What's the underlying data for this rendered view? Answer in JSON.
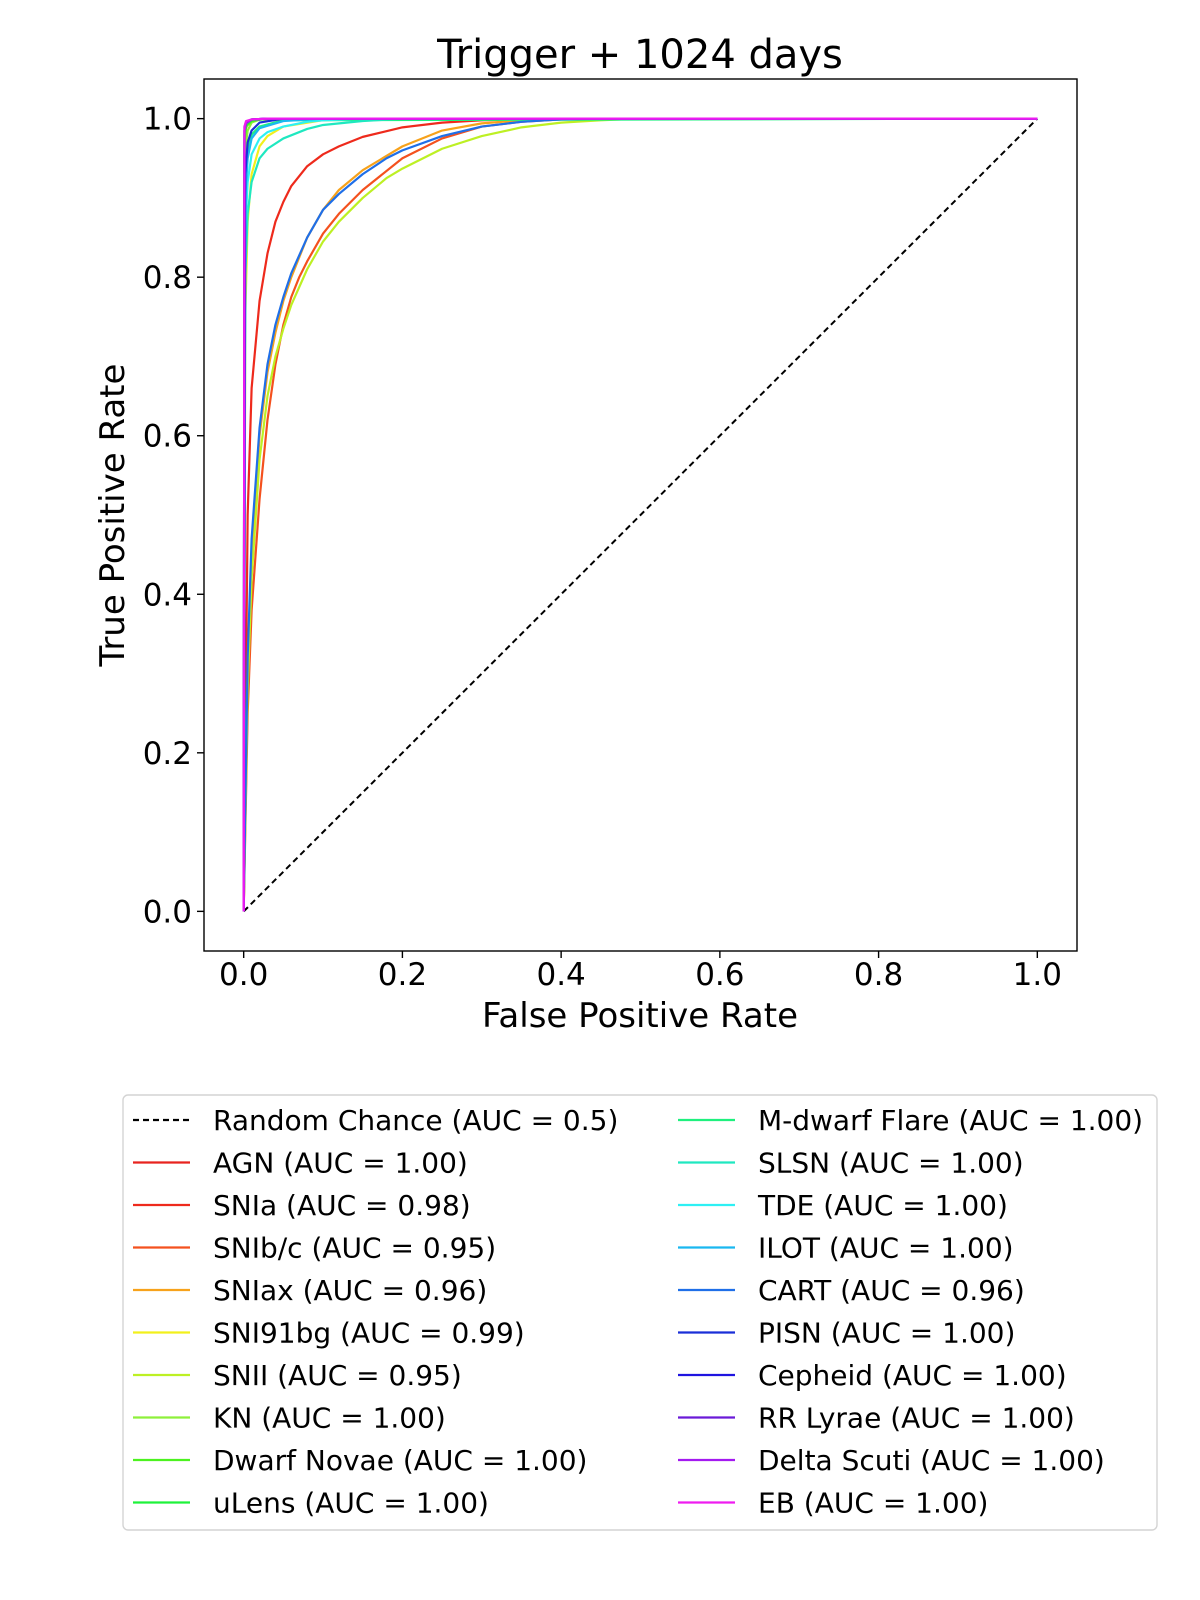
{
  "chart_data": {
    "type": "line",
    "title": "Trigger + 1024 days",
    "xlabel": "False Positive Rate",
    "ylabel": "True Positive Rate",
    "xlim": [
      -0.05,
      1.05
    ],
    "ylim": [
      -0.05,
      1.05
    ],
    "xticks": [
      "0.0",
      "0.2",
      "0.4",
      "0.6",
      "0.8",
      "1.0"
    ],
    "yticks": [
      "0.0",
      "0.2",
      "0.4",
      "0.6",
      "0.8",
      "1.0"
    ],
    "grid": false,
    "legend_placement": "below plot, two columns",
    "baseline": {
      "name": "Random Chance (AUC = 0.5)",
      "color": "#000000",
      "style": "dashed",
      "x": [
        0,
        1
      ],
      "y": [
        0,
        1
      ]
    },
    "series": [
      {
        "name": "AGN (AUC = 1.00)",
        "color": "#e8231f",
        "x": [
          0,
          0.002,
          0.005,
          0.01,
          0.02,
          0.05,
          0.1,
          1
        ],
        "y": [
          0,
          0.985,
          0.995,
          0.998,
          0.999,
          1,
          1,
          1
        ]
      },
      {
        "name": "SNIa (AUC = 0.98)",
        "color": "#ee2a1c",
        "x": [
          0,
          0.005,
          0.01,
          0.02,
          0.03,
          0.04,
          0.05,
          0.06,
          0.08,
          0.1,
          0.12,
          0.15,
          0.2,
          0.25,
          0.3,
          0.4,
          1
        ],
        "y": [
          0,
          0.5,
          0.66,
          0.77,
          0.83,
          0.87,
          0.895,
          0.915,
          0.94,
          0.955,
          0.965,
          0.977,
          0.989,
          0.995,
          0.998,
          1,
          1
        ]
      },
      {
        "name": "SNIb/c (AUC = 0.95)",
        "color": "#f4511e",
        "x": [
          0,
          0.005,
          0.01,
          0.02,
          0.03,
          0.04,
          0.05,
          0.06,
          0.07,
          0.08,
          0.1,
          0.12,
          0.15,
          0.2,
          0.25,
          0.3,
          0.35,
          0.4,
          0.45,
          1
        ],
        "y": [
          0,
          0.25,
          0.38,
          0.52,
          0.62,
          0.69,
          0.74,
          0.775,
          0.8,
          0.82,
          0.855,
          0.88,
          0.91,
          0.95,
          0.975,
          0.99,
          0.996,
          0.999,
          1,
          1
        ]
      },
      {
        "name": "SNIax (AUC = 0.96)",
        "color": "#f7a21b",
        "x": [
          0,
          0.005,
          0.01,
          0.02,
          0.03,
          0.04,
          0.05,
          0.06,
          0.08,
          0.1,
          0.12,
          0.15,
          0.2,
          0.25,
          0.3,
          0.35,
          0.4,
          0.45,
          1
        ],
        "y": [
          0,
          0.3,
          0.45,
          0.6,
          0.68,
          0.73,
          0.77,
          0.8,
          0.85,
          0.885,
          0.91,
          0.935,
          0.965,
          0.985,
          0.994,
          0.998,
          1,
          1,
          1
        ]
      },
      {
        "name": "SNI91bg (AUC = 0.99)",
        "color": "#f2f01c",
        "x": [
          0,
          0.002,
          0.005,
          0.01,
          0.02,
          0.03,
          0.05,
          0.1,
          0.15,
          1
        ],
        "y": [
          0,
          0.75,
          0.87,
          0.93,
          0.965,
          0.978,
          0.99,
          0.998,
          1,
          1
        ]
      },
      {
        "name": "SNII (AUC = 0.95)",
        "color": "#bdf024",
        "x": [
          0,
          0.005,
          0.01,
          0.02,
          0.03,
          0.04,
          0.05,
          0.06,
          0.08,
          0.1,
          0.12,
          0.15,
          0.18,
          0.2,
          0.25,
          0.3,
          0.35,
          0.4,
          0.45,
          0.5,
          1
        ],
        "y": [
          0,
          0.28,
          0.42,
          0.57,
          0.65,
          0.7,
          0.735,
          0.765,
          0.81,
          0.845,
          0.87,
          0.9,
          0.925,
          0.937,
          0.962,
          0.978,
          0.989,
          0.995,
          0.998,
          1,
          1
        ]
      },
      {
        "name": "KN (AUC = 1.00)",
        "color": "#8ef03a",
        "x": [
          0,
          0.002,
          0.005,
          0.01,
          0.02,
          0.05,
          1
        ],
        "y": [
          0,
          0.96,
          0.985,
          0.995,
          0.999,
          1,
          1
        ]
      },
      {
        "name": "Dwarf Novae (AUC = 1.00)",
        "color": "#4cf21f",
        "x": [
          0,
          0.001,
          0.003,
          0.01,
          0.03,
          1
        ],
        "y": [
          0,
          0.97,
          0.99,
          0.997,
          1,
          1
        ]
      },
      {
        "name": "uLens (AUC = 1.00)",
        "color": "#1ef23a",
        "x": [
          0,
          0.001,
          0.003,
          0.01,
          0.03,
          1
        ],
        "y": [
          0,
          0.98,
          0.993,
          0.998,
          1,
          1
        ]
      },
      {
        "name": "M-dwarf Flare (AUC = 1.00)",
        "color": "#1ef07e",
        "x": [
          0,
          0.002,
          0.005,
          0.01,
          0.02,
          0.05,
          1
        ],
        "y": [
          0,
          0.92,
          0.96,
          0.98,
          0.99,
          0.998,
          1
        ]
      },
      {
        "name": "SLSN (AUC = 1.00)",
        "color": "#1fe8c0",
        "x": [
          0,
          0.002,
          0.005,
          0.01,
          0.02,
          0.03,
          0.05,
          0.08,
          0.1,
          0.15,
          0.2,
          1
        ],
        "y": [
          0,
          0.8,
          0.88,
          0.92,
          0.95,
          0.962,
          0.975,
          0.987,
          0.992,
          0.997,
          1,
          1
        ]
      },
      {
        "name": "TDE (AUC = 1.00)",
        "color": "#2ef0f4",
        "x": [
          0,
          0.002,
          0.005,
          0.01,
          0.02,
          0.03,
          0.05,
          0.08,
          0.1,
          0.15,
          1
        ],
        "y": [
          0,
          0.86,
          0.92,
          0.955,
          0.975,
          0.983,
          0.99,
          0.996,
          0.998,
          1,
          1
        ]
      },
      {
        "name": "ILOT (AUC = 1.00)",
        "color": "#1ab8f0",
        "x": [
          0,
          0.002,
          0.005,
          0.01,
          0.02,
          0.05,
          0.1,
          1
        ],
        "y": [
          0,
          0.9,
          0.95,
          0.975,
          0.988,
          0.997,
          1,
          1
        ]
      },
      {
        "name": "CART (AUC = 0.96)",
        "color": "#1f6fe8",
        "x": [
          0,
          0.005,
          0.01,
          0.02,
          0.03,
          0.04,
          0.05,
          0.06,
          0.08,
          0.1,
          0.12,
          0.15,
          0.18,
          0.2,
          0.25,
          0.3,
          0.35,
          0.4,
          0.45,
          1
        ],
        "y": [
          0,
          0.32,
          0.47,
          0.61,
          0.69,
          0.74,
          0.775,
          0.805,
          0.85,
          0.885,
          0.905,
          0.93,
          0.95,
          0.96,
          0.978,
          0.99,
          0.996,
          0.999,
          1,
          1
        ]
      },
      {
        "name": "PISN (AUC = 1.00)",
        "color": "#1a2fd8",
        "x": [
          0,
          0.002,
          0.005,
          0.01,
          0.02,
          0.05,
          1
        ],
        "y": [
          0,
          0.93,
          0.97,
          0.985,
          0.995,
          1,
          1
        ]
      },
      {
        "name": "Cepheid (AUC = 1.00)",
        "color": "#1f14e0",
        "x": [
          0,
          0.001,
          0.003,
          0.01,
          0.03,
          1
        ],
        "y": [
          0,
          0.985,
          0.995,
          0.999,
          1,
          1
        ]
      },
      {
        "name": "RR Lyrae (AUC = 1.00)",
        "color": "#6a1ad8",
        "x": [
          0,
          0.001,
          0.003,
          0.01,
          0.03,
          1
        ],
        "y": [
          0,
          0.99,
          0.996,
          0.999,
          1,
          1
        ]
      },
      {
        "name": "Delta Scuti (AUC = 1.00)",
        "color": "#a31af0",
        "x": [
          0,
          0.001,
          0.003,
          0.01,
          0.03,
          1
        ],
        "y": [
          0,
          0.985,
          0.994,
          0.999,
          1,
          1
        ]
      },
      {
        "name": "EB (AUC = 1.00)",
        "color": "#ef1cf0",
        "x": [
          0,
          0.001,
          0.003,
          0.01,
          0.03,
          1
        ],
        "y": [
          0,
          0.99,
          0.997,
          0.999,
          1,
          1
        ]
      }
    ]
  }
}
